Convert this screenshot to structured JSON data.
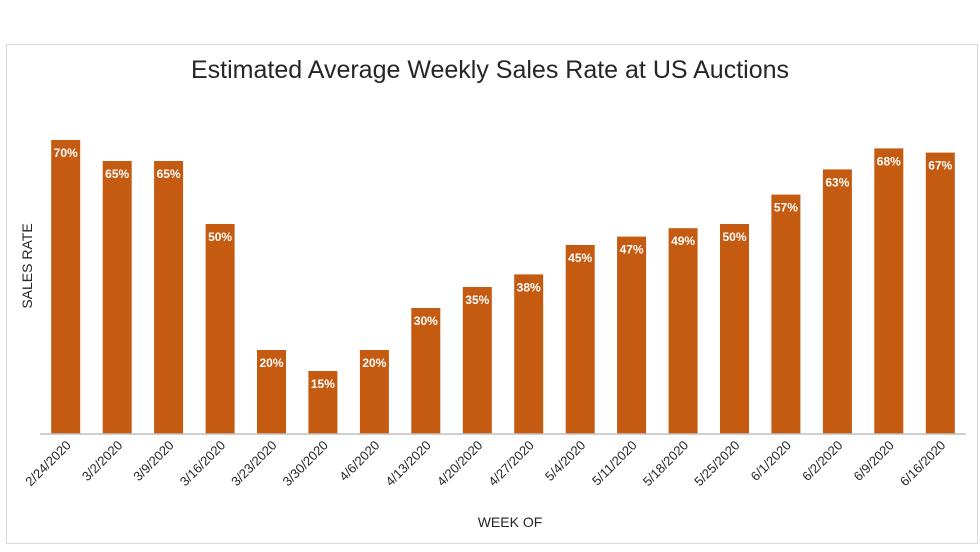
{
  "chart_data": {
    "type": "bar",
    "title": "Estimated Average Weekly Sales Rate at US Auctions",
    "xlabel": "WEEK OF",
    "ylabel": "SALES RATE",
    "categories": [
      "2/24/2020",
      "3/2/2020",
      "3/9/2020",
      "3/16/2020",
      "3/23/2020",
      "3/30/2020",
      "4/6/2020",
      "4/13/2020",
      "4/20/2020",
      "4/27/2020",
      "5/4/2020",
      "5/11/2020",
      "5/18/2020",
      "5/25/2020",
      "6/1/2020",
      "6/2/2020",
      "6/9/2020",
      "6/16/2020"
    ],
    "values": [
      70,
      65,
      65,
      50,
      20,
      15,
      20,
      30,
      35,
      38,
      45,
      47,
      49,
      50,
      57,
      63,
      68,
      67
    ],
    "data_labels": [
      "70%",
      "65%",
      "65%",
      "50%",
      "20%",
      "15%",
      "20%",
      "30%",
      "35%",
      "38%",
      "45%",
      "47%",
      "49%",
      "50%",
      "57%",
      "63%",
      "68%",
      "67%"
    ],
    "ylim": [
      0,
      80
    ],
    "grid": false,
    "legend": "none",
    "bar_color": "#c55a11",
    "label_color": "#ffffff"
  }
}
